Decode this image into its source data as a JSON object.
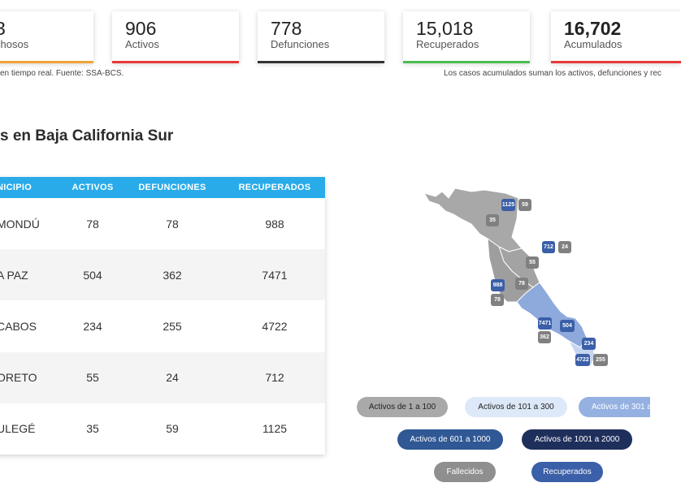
{
  "summary": [
    {
      "value": "3",
      "label": "chosos",
      "color": "#f0a33a"
    },
    {
      "value": "906",
      "label": "Activos",
      "color": "#e8383b"
    },
    {
      "value": "778",
      "label": "Defunciones",
      "color": "#333333"
    },
    {
      "value": "15,018",
      "label": "Recuperados",
      "color": "#4dbd4f"
    },
    {
      "value": "16,702",
      "label": "Acumulados",
      "color": "#e8383b"
    }
  ],
  "notes": {
    "left": "en tiempo real. Fuente: SSA-BCS.",
    "right": "Los casos acumulados suman los activos, defunciones y rec"
  },
  "heading": "s en Baja California Sur",
  "table": {
    "headers": [
      "NICIPIO",
      "ACTIVOS",
      "DEFUNCIONES",
      "RECUPERADOS"
    ],
    "rows": [
      {
        "municipio": "MONDÚ",
        "activos": "78",
        "defunciones": "78",
        "recuperados": "988"
      },
      {
        "municipio": "A PAZ",
        "activos": "504",
        "defunciones": "362",
        "recuperados": "7471"
      },
      {
        "municipio": "CABOS",
        "activos": "234",
        "defunciones": "255",
        "recuperados": "4722"
      },
      {
        "municipio": "ORETO",
        "activos": "55",
        "defunciones": "24",
        "recuperados": "712"
      },
      {
        "municipio": "ULEGÉ",
        "activos": "35",
        "defunciones": "59",
        "recuperados": "1125"
      }
    ]
  },
  "map_markers": [
    {
      "value": "1125",
      "kind": "recuperados"
    },
    {
      "value": "59",
      "kind": "fallecidos"
    },
    {
      "value": "35",
      "kind": "activos"
    },
    {
      "value": "712",
      "kind": "recuperados"
    },
    {
      "value": "24",
      "kind": "fallecidos"
    },
    {
      "value": "55",
      "kind": "activos"
    },
    {
      "value": "988",
      "kind": "recuperados"
    },
    {
      "value": "78",
      "kind": "activos"
    },
    {
      "value": "78",
      "kind": "fallecidos"
    },
    {
      "value": "7471",
      "kind": "recuperados"
    },
    {
      "value": "504",
      "kind": "activos"
    },
    {
      "value": "362",
      "kind": "fallecidos"
    },
    {
      "value": "234",
      "kind": "activos"
    },
    {
      "value": "4722",
      "kind": "recuperados"
    },
    {
      "value": "255",
      "kind": "fallecidos"
    }
  ],
  "legend": [
    {
      "label": "Activos de 1 a 100",
      "bg": "#a9a9a9",
      "fg": "#222222"
    },
    {
      "label": "Activos de 101 a 300",
      "bg": "#dde9f8",
      "fg": "#222222"
    },
    {
      "label": "Activos de 301 a",
      "bg": "#95b1e2",
      "fg": "#ffffff"
    },
    {
      "label": "Activos de 601 a 1000",
      "bg": "#2f5894",
      "fg": "#ffffff"
    },
    {
      "label": "Activos de 1001 a 2000",
      "bg": "#1f2f5c",
      "fg": "#ffffff"
    },
    {
      "label": "Fallecidos",
      "bg": "#8f8f8f",
      "fg": "#ffffff"
    },
    {
      "label": "Recuperados",
      "bg": "#3b5fa8",
      "fg": "#ffffff"
    }
  ]
}
